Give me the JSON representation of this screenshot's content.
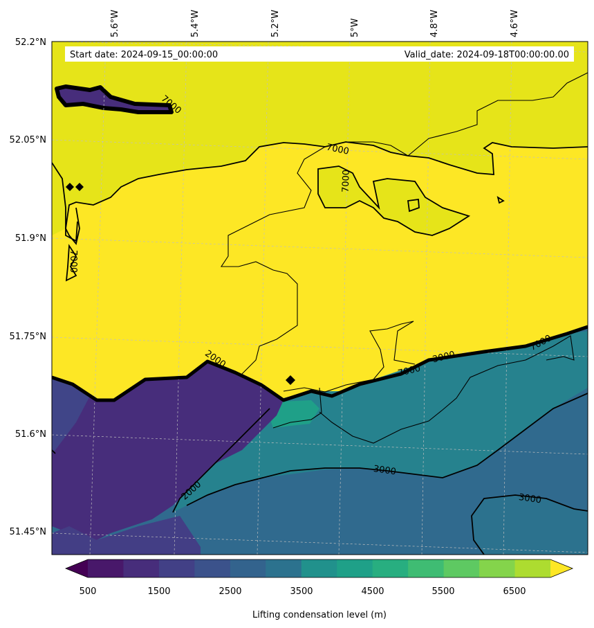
{
  "info": {
    "start_label": "Start date: 2024-09-15_00:00:00",
    "valid_label": "Valid_date: 2024-09-18T00:00:00.00"
  },
  "lon_ticks": [
    "5.6°W",
    "5.4°W",
    "5.2°W",
    "5°W",
    "4.8°W",
    "4.6°W"
  ],
  "lat_ticks": [
    "52.2°N",
    "52.05°N",
    "51.9°N",
    "51.75°N",
    "51.6°N",
    "51.45°N"
  ],
  "contour_labels": [
    "7000",
    "7000",
    "7000",
    "3000",
    "3000",
    "3000",
    "2000",
    "2000",
    "7000",
    "7000",
    "7000"
  ],
  "colorbar": {
    "title": "Lifting condensation level (m)",
    "tick_labels": [
      "500",
      "1500",
      "2500",
      "3500",
      "4500",
      "5500",
      "6500"
    ],
    "colors": {
      "under": "#440154",
      "levels": [
        "#48186a",
        "#472d7b",
        "#424086",
        "#3b528b",
        "#33638d",
        "#2c728e",
        "#21918c",
        "#1fa088",
        "#28ae80",
        "#3fbc73",
        "#5ec962",
        "#84d44b",
        "#addc30"
      ],
      "over": "#fde725"
    }
  },
  "map_colors": {
    "yellow_bright": "#fde725",
    "yellow_green": "#e6e419",
    "purple_dark": "#472d7b",
    "purple_mid": "#433e85",
    "teal_blue": "#2f6c8e",
    "teal": "#26828e",
    "teal_green": "#1fa088",
    "blue_grey": "#306a8e"
  }
}
